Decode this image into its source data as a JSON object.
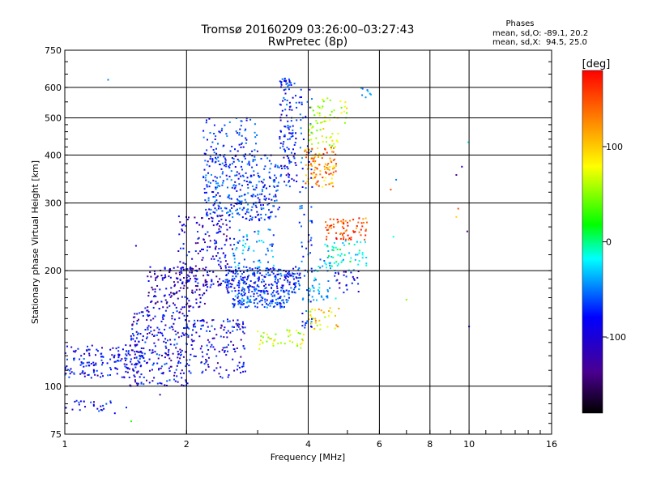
{
  "chart_data": {
    "type": "scatter",
    "title": "Tromsø 20160209 03:26:00–03:27:43",
    "subtitle": "RwPretec (8p)",
    "stats": {
      "heading": "Phases",
      "line_o": "mean, sd,O: -89.1, 20.2",
      "line_x": "mean, sd,X:  94.5, 25.0"
    },
    "xlabel": "Frequency [MHz]",
    "ylabel": "Stationary phase Virtual Height [km]",
    "x_scale": "log",
    "y_scale": "log",
    "xlim": [
      1,
      16
    ],
    "ylim": [
      75,
      750
    ],
    "x_ticks": [
      1,
      2,
      4,
      6,
      8,
      10,
      16
    ],
    "x_tick_labels": [
      "1",
      "2",
      "4",
      "6",
      "8",
      "10",
      "16"
    ],
    "y_ticks": [
      75,
      100,
      200,
      300,
      400,
      500,
      600,
      750
    ],
    "y_tick_labels": [
      "75",
      "100",
      "200",
      "300",
      "400",
      "500",
      "600",
      "750"
    ],
    "grid": true,
    "colorbar": {
      "label": "[deg]",
      "min": -180,
      "max": 180,
      "ticks": [
        100,
        0,
        -100
      ],
      "tick_labels": [
        "100",
        "0",
        "-100"
      ]
    },
    "clusters": [
      {
        "f_min": 1.0,
        "f_max": 1.55,
        "h_min": 105,
        "h_max": 128,
        "phase": -100,
        "n": 170
      },
      {
        "f_min": 1.0,
        "f_max": 1.3,
        "h_min": 86,
        "h_max": 92,
        "phase": -100,
        "n": 26
      },
      {
        "f_min": 1.45,
        "f_max": 2.05,
        "h_min": 100,
        "h_max": 160,
        "phase": -105,
        "n": 260
      },
      {
        "f_min": 1.6,
        "f_max": 2.25,
        "h_min": 160,
        "h_max": 205,
        "phase": -120,
        "n": 150
      },
      {
        "f_min": 1.9,
        "f_max": 2.6,
        "h_min": 180,
        "h_max": 280,
        "phase": -115,
        "n": 170
      },
      {
        "f_min": 2.0,
        "f_max": 2.8,
        "h_min": 105,
        "h_max": 150,
        "phase": -105,
        "n": 150
      },
      {
        "f_min": 2.2,
        "f_max": 3.4,
        "h_min": 270,
        "h_max": 400,
        "phase": -85,
        "n": 340
      },
      {
        "f_min": 2.2,
        "f_max": 3.0,
        "h_min": 400,
        "h_max": 500,
        "phase": -85,
        "n": 70
      },
      {
        "f_min": 2.5,
        "f_max": 3.8,
        "h_min": 175,
        "h_max": 205,
        "phase": -90,
        "n": 260
      },
      {
        "f_min": 2.6,
        "f_max": 3.6,
        "h_min": 160,
        "h_max": 175,
        "phase": -80,
        "n": 120
      },
      {
        "f_min": 2.6,
        "f_max": 3.3,
        "h_min": 200,
        "h_max": 260,
        "phase": -55,
        "n": 60
      },
      {
        "f_min": 3.0,
        "f_max": 3.9,
        "h_min": 125,
        "h_max": 140,
        "phase": 80,
        "n": 40
      },
      {
        "f_min": 3.4,
        "f_max": 3.75,
        "h_min": 330,
        "h_max": 640,
        "phase": -95,
        "n": 130
      },
      {
        "f_min": 3.8,
        "f_max": 4.1,
        "h_min": 140,
        "h_max": 600,
        "phase": -80,
        "n": 90
      },
      {
        "f_min": 3.9,
        "f_max": 4.7,
        "h_min": 330,
        "h_max": 420,
        "phase": 130,
        "n": 110
      },
      {
        "f_min": 4.0,
        "f_max": 5.0,
        "h_min": 420,
        "h_max": 580,
        "phase": 80,
        "n": 70
      },
      {
        "f_min": 4.0,
        "f_max": 4.8,
        "h_min": 140,
        "h_max": 160,
        "phase": 100,
        "n": 35
      },
      {
        "f_min": 4.0,
        "f_max": 4.7,
        "h_min": 165,
        "h_max": 215,
        "phase": -40,
        "n": 45
      },
      {
        "f_min": 4.4,
        "f_max": 5.6,
        "h_min": 240,
        "h_max": 275,
        "phase": 150,
        "n": 70
      },
      {
        "f_min": 4.4,
        "f_max": 5.6,
        "h_min": 200,
        "h_max": 240,
        "phase": -20,
        "n": 60
      },
      {
        "f_min": 4.6,
        "f_max": 5.5,
        "h_min": 175,
        "h_max": 200,
        "phase": -110,
        "n": 25
      },
      {
        "f_min": 5.4,
        "f_max": 5.8,
        "h_min": 560,
        "h_max": 600,
        "phase": -60,
        "n": 8
      }
    ],
    "points": [
      {
        "x": 1.28,
        "y": 628,
        "phase": -60
      },
      {
        "x": 1.5,
        "y": 232,
        "phase": -110
      },
      {
        "x": 1.42,
        "y": 88,
        "phase": -90
      },
      {
        "x": 1.33,
        "y": 85,
        "phase": -100
      },
      {
        "x": 1.46,
        "y": 81,
        "phase": 30
      },
      {
        "x": 1.72,
        "y": 95,
        "phase": -130
      },
      {
        "x": 6.4,
        "y": 325,
        "phase": 150
      },
      {
        "x": 6.6,
        "y": 345,
        "phase": -60
      },
      {
        "x": 6.5,
        "y": 245,
        "phase": -20
      },
      {
        "x": 7.0,
        "y": 168,
        "phase": 60
      },
      {
        "x": 9.3,
        "y": 355,
        "phase": -140
      },
      {
        "x": 9.6,
        "y": 373,
        "phase": -120
      },
      {
        "x": 9.4,
        "y": 290,
        "phase": 150
      },
      {
        "x": 9.3,
        "y": 276,
        "phase": 110
      },
      {
        "x": 9.9,
        "y": 253,
        "phase": -140
      },
      {
        "x": 9.95,
        "y": 432,
        "phase": -20
      },
      {
        "x": 10.0,
        "y": 143,
        "phase": -100
      }
    ]
  }
}
